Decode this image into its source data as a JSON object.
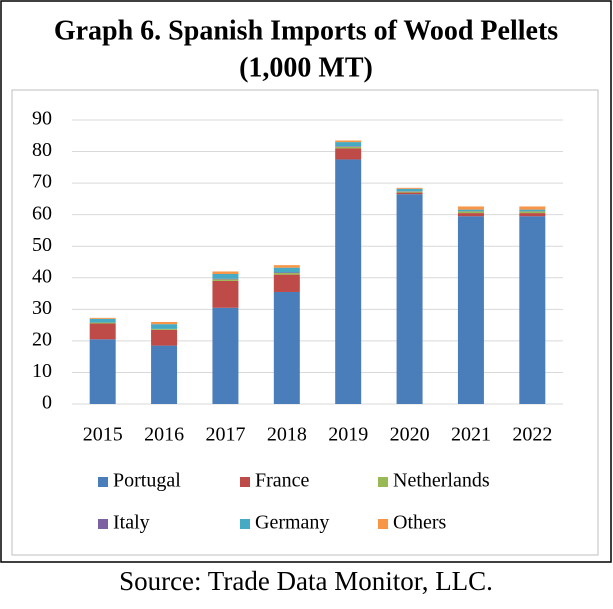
{
  "chart_data": {
    "type": "stacked_bar",
    "title": "Graph 6. Spanish Imports of Wood Pellets",
    "subtitle": "(1,000 MT)",
    "source": "Source: Trade Data Monitor, LLC.",
    "categories": [
      "2015",
      "2016",
      "2017",
      "2018",
      "2019",
      "2020",
      "2021",
      "2022"
    ],
    "series": [
      {
        "name": "Portugal",
        "color": "#4a7ebb",
        "values": [
          20.5,
          18.5,
          30.5,
          35.5,
          77.5,
          66.5,
          59.5,
          59.5
        ]
      },
      {
        "name": "France",
        "color": "#be4b48",
        "values": [
          5,
          5,
          8.5,
          5.5,
          3.5,
          0.5,
          1,
          1
        ]
      },
      {
        "name": "Netherlands",
        "color": "#98b954",
        "values": [
          0.3,
          0.3,
          0.5,
          0.5,
          0.5,
          0.3,
          0.5,
          0.5
        ]
      },
      {
        "name": "Italy",
        "color": "#7d60a0",
        "values": [
          0,
          0,
          0.2,
          0.2,
          0.2,
          0.1,
          0.1,
          0.1
        ]
      },
      {
        "name": "Germany",
        "color": "#46aac5",
        "values": [
          1.2,
          1.5,
          1.5,
          1.5,
          1.3,
          0.8,
          0.5,
          0.5
        ]
      },
      {
        "name": "Others",
        "color": "#f79646",
        "values": [
          0.3,
          0.7,
          0.8,
          0.8,
          0.5,
          0.3,
          1,
          1
        ]
      }
    ],
    "ylim": [
      0,
      90
    ],
    "yticks": [
      0,
      10,
      20,
      30,
      40,
      50,
      60,
      70,
      80,
      90
    ],
    "grid": true,
    "legend": "bottom"
  }
}
